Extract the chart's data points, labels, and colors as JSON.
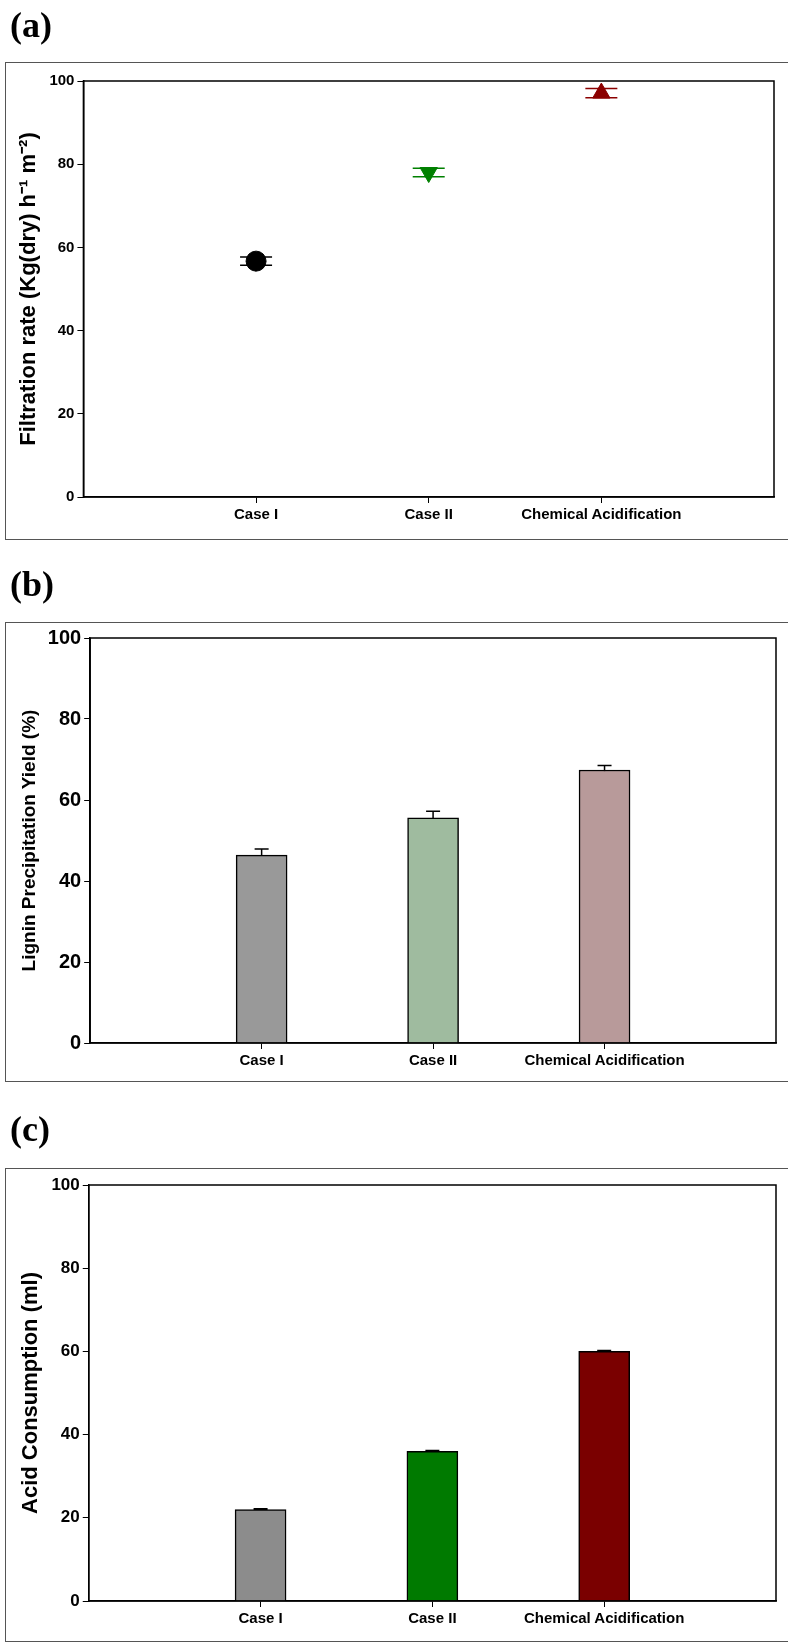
{
  "chart_data": [
    {
      "type": "scatter",
      "title": "(a)",
      "ylabel": "Filtration rate (Kg(dry) h⁻¹ m⁻²)",
      "categories": [
        "Case I",
        "Case II",
        "Chemical Acidification"
      ],
      "series": [
        {
          "color": "#000000",
          "marker": "circle",
          "values": [
            56.7,
            null,
            null
          ],
          "errors": [
            1,
            null,
            null
          ]
        },
        {
          "color": "#008000",
          "marker": "triangle-down",
          "values": [
            null,
            78,
            null
          ],
          "errors": [
            null,
            1,
            null
          ]
        },
        {
          "color": "#8b0000",
          "marker": "triangle",
          "values": [
            null,
            null,
            97.1
          ],
          "errors": [
            null,
            null,
            1.1
          ]
        }
      ],
      "ylim": [
        0,
        100
      ],
      "yticks": [
        0,
        20,
        40,
        60,
        80,
        100
      ]
    },
    {
      "type": "bar",
      "title": "(b)",
      "ylabel": "Lignin Precipitation Yield (%)",
      "categories": [
        "Case I",
        "Case II",
        "Chemical Acidification"
      ],
      "values": [
        46.4,
        55.6,
        67.4
      ],
      "errors": [
        1.5,
        1.6,
        1.1
      ],
      "colors": [
        "#999999",
        "#9fbb9f",
        "#b89a9a"
      ],
      "ylim": [
        0,
        100
      ],
      "yticks": [
        0,
        20,
        40,
        60,
        80,
        100
      ]
    },
    {
      "type": "bar",
      "title": "(c)",
      "ylabel": "Acid Consumption (ml)",
      "categories": [
        "Case I",
        "Case II",
        "Chemical Acidification"
      ],
      "values": [
        22,
        36,
        60
      ],
      "errors": [
        0.2,
        0.2,
        0.2
      ],
      "colors": [
        "#8c8c8c",
        "#007a00",
        "#7a0000"
      ],
      "ylim": [
        0,
        100
      ],
      "yticks": [
        0,
        20,
        40,
        60,
        80,
        100
      ]
    }
  ]
}
